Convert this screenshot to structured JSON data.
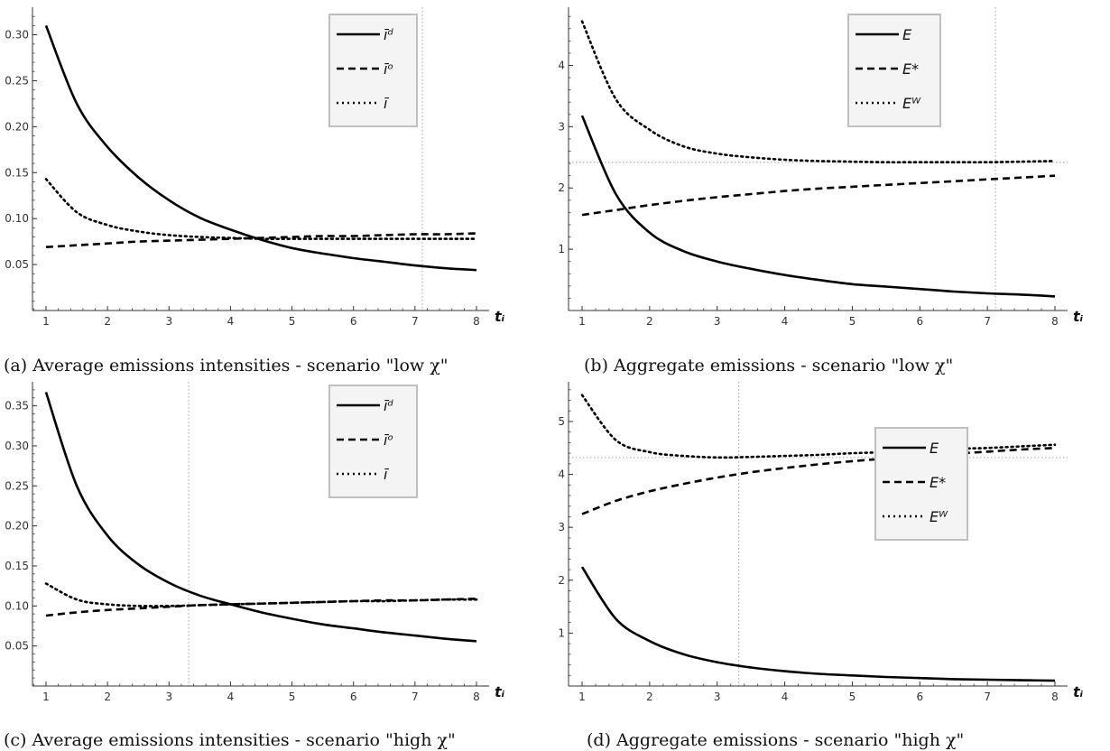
{
  "chart_data": [
    {
      "type": "line",
      "caption": "(a) Average emissions intensities - scenario \"low χ\"",
      "xlabel": "tᵢ",
      "ylabel": "",
      "xlim": [
        1,
        8
      ],
      "ylim": [
        0.0,
        0.33
      ],
      "xticks": [
        "1",
        "2",
        "3",
        "4",
        "5",
        "6",
        "7",
        "8"
      ],
      "yticks": [
        "0.05",
        "0.10",
        "0.15",
        "0.20",
        "0.25",
        "0.30"
      ],
      "x": [
        1,
        1.5,
        2,
        2.5,
        3,
        3.5,
        4,
        4.5,
        5,
        5.5,
        6,
        6.5,
        7,
        7.5,
        8
      ],
      "series": [
        {
          "name": "īᵈ",
          "style": "solid",
          "values": [
            0.31,
            0.225,
            0.178,
            0.145,
            0.12,
            0.101,
            0.088,
            0.077,
            0.068,
            0.062,
            0.057,
            0.053,
            0.049,
            0.046,
            0.044
          ]
        },
        {
          "name": "īᵒ",
          "style": "dashed",
          "values": [
            0.069,
            0.071,
            0.073,
            0.075,
            0.076,
            0.077,
            0.078,
            0.079,
            0.08,
            0.081,
            0.081,
            0.082,
            0.083,
            0.083,
            0.084
          ]
        },
        {
          "name": "ī",
          "style": "dotted",
          "values": [
            0.143,
            0.107,
            0.093,
            0.086,
            0.082,
            0.08,
            0.079,
            0.078,
            0.078,
            0.078,
            0.078,
            0.078,
            0.078,
            0.078,
            0.078
          ]
        }
      ],
      "vline": 7.12,
      "hline": null,
      "legend_position": "top-right"
    },
    {
      "type": "line",
      "caption": "(b) Aggregate emissions - scenario \"low χ\"",
      "xlabel": "tᵢ",
      "ylabel": "",
      "xlim": [
        1,
        8
      ],
      "ylim": [
        0.0,
        4.95
      ],
      "xticks": [
        "1",
        "2",
        "3",
        "4",
        "5",
        "6",
        "7",
        "8"
      ],
      "yticks": [
        "1",
        "2",
        "3",
        "4"
      ],
      "x": [
        1,
        1.5,
        2,
        2.5,
        3,
        3.5,
        4,
        4.5,
        5,
        5.5,
        6,
        6.5,
        7,
        7.5,
        8
      ],
      "series": [
        {
          "name": "E",
          "style": "solid",
          "values": [
            3.18,
            1.9,
            1.27,
            0.97,
            0.8,
            0.68,
            0.58,
            0.5,
            0.43,
            0.39,
            0.35,
            0.31,
            0.28,
            0.26,
            0.23
          ]
        },
        {
          "name": "E*",
          "style": "dashed",
          "values": [
            1.56,
            1.64,
            1.72,
            1.79,
            1.85,
            1.9,
            1.95,
            1.99,
            2.02,
            2.05,
            2.08,
            2.11,
            2.14,
            2.17,
            2.2
          ]
        },
        {
          "name": "Eᵂ",
          "style": "dotted",
          "values": [
            4.72,
            3.45,
            2.95,
            2.68,
            2.56,
            2.5,
            2.46,
            2.44,
            2.43,
            2.42,
            2.42,
            2.42,
            2.42,
            2.43,
            2.44
          ]
        }
      ],
      "vline": 7.12,
      "hline": 2.42,
      "legend_position": "top-right"
    },
    {
      "type": "line",
      "caption": "(c) Average emissions intensities - scenario \"high χ\"",
      "xlabel": "tᵢ",
      "ylabel": "",
      "xlim": [
        1,
        8
      ],
      "ylim": [
        0.0,
        0.38
      ],
      "xticks": [
        "1",
        "2",
        "3",
        "4",
        "5",
        "6",
        "7",
        "8"
      ],
      "yticks": [
        "0.05",
        "0.10",
        "0.15",
        "0.20",
        "0.25",
        "0.30",
        "0.35"
      ],
      "x": [
        1,
        1.5,
        2,
        2.5,
        3,
        3.5,
        4,
        4.5,
        5,
        5.5,
        6,
        6.5,
        7,
        7.5,
        8
      ],
      "series": [
        {
          "name": "īᵈ",
          "style": "solid",
          "values": [
            0.367,
            0.25,
            0.188,
            0.152,
            0.129,
            0.113,
            0.102,
            0.092,
            0.084,
            0.077,
            0.072,
            0.067,
            0.063,
            0.059,
            0.056
          ]
        },
        {
          "name": "īᵒ",
          "style": "dashed",
          "values": [
            0.088,
            0.092,
            0.095,
            0.097,
            0.099,
            0.101,
            0.102,
            0.103,
            0.104,
            0.105,
            0.106,
            0.107,
            0.107,
            0.108,
            0.109
          ]
        },
        {
          "name": "ī",
          "style": "dotted",
          "values": [
            0.128,
            0.108,
            0.102,
            0.1,
            0.1,
            0.101,
            0.102,
            0.103,
            0.104,
            0.105,
            0.106,
            0.106,
            0.107,
            0.108,
            0.108
          ]
        }
      ],
      "vline": 3.32,
      "hline": null,
      "legend_position": "top-right"
    },
    {
      "type": "line",
      "caption": "(d) Aggregate emissions - scenario \"high χ\"",
      "xlabel": "tᵢ",
      "ylabel": "",
      "xlim": [
        1,
        8
      ],
      "ylim": [
        0.0,
        5.75
      ],
      "xticks": [
        "1",
        "2",
        "3",
        "4",
        "5",
        "6",
        "7",
        "8"
      ],
      "yticks": [
        "1",
        "2",
        "3",
        "4",
        "5"
      ],
      "x": [
        1,
        1.5,
        2,
        2.5,
        3,
        3.5,
        4,
        4.5,
        5,
        5.5,
        6,
        6.5,
        7,
        7.5,
        8
      ],
      "series": [
        {
          "name": "E",
          "style": "solid",
          "values": [
            2.25,
            1.27,
            0.85,
            0.6,
            0.45,
            0.35,
            0.28,
            0.23,
            0.2,
            0.17,
            0.15,
            0.13,
            0.12,
            0.11,
            0.1
          ]
        },
        {
          "name": "E*",
          "style": "dashed",
          "values": [
            3.25,
            3.5,
            3.68,
            3.82,
            3.94,
            4.04,
            4.12,
            4.19,
            4.25,
            4.3,
            4.35,
            4.39,
            4.43,
            4.47,
            4.5
          ]
        },
        {
          "name": "Eᵂ",
          "style": "dotted",
          "values": [
            5.5,
            4.65,
            4.42,
            4.35,
            4.32,
            4.33,
            4.35,
            4.37,
            4.4,
            4.42,
            4.45,
            4.48,
            4.5,
            4.53,
            4.56
          ]
        }
      ],
      "vline": 3.32,
      "hline": 4.32,
      "legend_position": "right"
    }
  ]
}
